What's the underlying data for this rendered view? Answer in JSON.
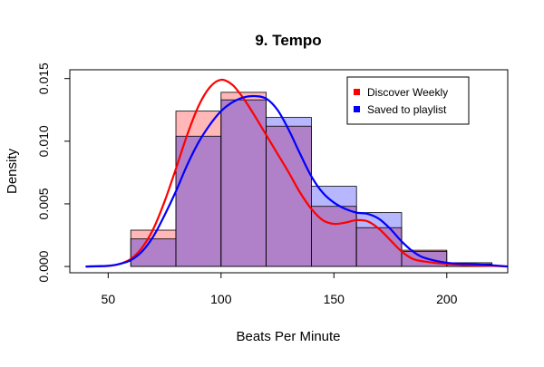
{
  "chart_data": {
    "type": "histogram",
    "title": "9. Tempo",
    "xlabel": "Beats Per Minute",
    "ylabel": "Density",
    "xlim": [
      33,
      227
    ],
    "ylim": [
      -0.0005,
      0.0157
    ],
    "xticks": [
      50,
      100,
      150,
      200
    ],
    "xtick_labels": [
      "50",
      "100",
      "150",
      "200"
    ],
    "yticks": [
      0.0,
      0.005,
      0.01,
      0.015
    ],
    "ytick_labels": [
      "0.000",
      "0.005",
      "0.010",
      "0.015"
    ],
    "bin_edges": [
      60,
      80,
      100,
      120,
      140,
      160,
      180,
      200,
      220
    ],
    "legend": {
      "position": "top-right"
    },
    "series": [
      {
        "name": "Discover Weekly",
        "legend_label": "Discover Weekly",
        "color": "#ff0000",
        "fill": "#ff9999",
        "fill_opacity": 0.7,
        "bar_values": [
          0.0029,
          0.0124,
          0.0139,
          0.0112,
          0.0048,
          0.0031,
          0.0013,
          0.0002
        ],
        "density_x": [
          40,
          50,
          55,
          60,
          65,
          70,
          75,
          80,
          85,
          90,
          95,
          100,
          105,
          110,
          115,
          120,
          125,
          130,
          135,
          140,
          145,
          150,
          155,
          160,
          165,
          170,
          175,
          180,
          185,
          190,
          200,
          210,
          220,
          227
        ],
        "density_y": [
          0.0,
          5e-05,
          0.0002,
          0.0006,
          0.0015,
          0.003,
          0.0052,
          0.0078,
          0.0105,
          0.0128,
          0.0143,
          0.0149,
          0.0145,
          0.0134,
          0.012,
          0.0105,
          0.009,
          0.0075,
          0.0059,
          0.0046,
          0.0037,
          0.0034,
          0.0035,
          0.0037,
          0.0036,
          0.003,
          0.0021,
          0.0012,
          0.0006,
          0.0004,
          0.0002,
          0.0001,
          5e-05,
          0.0
        ]
      },
      {
        "name": "Saved to playlist",
        "legend_label": "Saved to playlist",
        "color": "#0000ff",
        "fill": "#9999ff",
        "fill_opacity": 0.7,
        "bar_values": [
          0.0022,
          0.0104,
          0.0133,
          0.0119,
          0.0064,
          0.0043,
          0.0012,
          0.0003
        ],
        "density_x": [
          40,
          50,
          55,
          60,
          65,
          70,
          75,
          80,
          85,
          90,
          95,
          100,
          105,
          110,
          115,
          120,
          125,
          130,
          135,
          140,
          145,
          150,
          155,
          160,
          165,
          170,
          175,
          180,
          185,
          190,
          200,
          210,
          220,
          227
        ],
        "density_y": [
          0.0,
          5e-05,
          0.0002,
          0.0005,
          0.0012,
          0.0024,
          0.0041,
          0.006,
          0.0081,
          0.0099,
          0.0113,
          0.0124,
          0.0131,
          0.0135,
          0.0136,
          0.0134,
          0.0125,
          0.0109,
          0.009,
          0.0072,
          0.0059,
          0.0051,
          0.0046,
          0.0043,
          0.0042,
          0.0038,
          0.003,
          0.002,
          0.0012,
          0.0007,
          0.0003,
          0.0002,
          0.0001,
          0.0
        ]
      }
    ],
    "overlap_fill": "#b080c8"
  }
}
